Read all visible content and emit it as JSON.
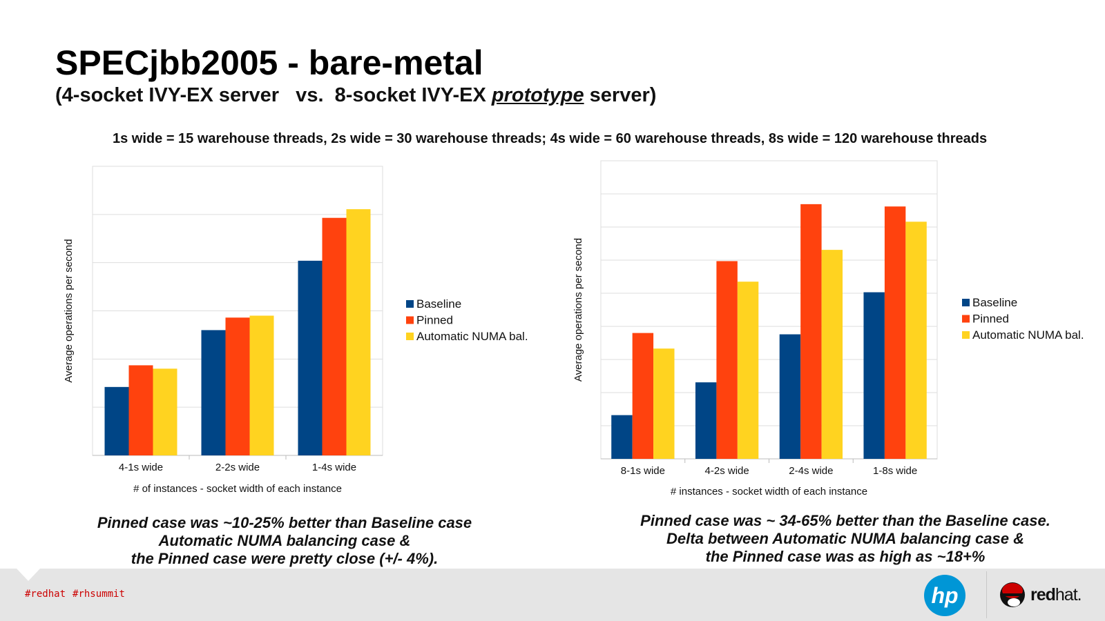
{
  "header": {
    "title": "SPECjbb2005 - bare-metal",
    "subtitle_pre": "(4-socket IVY-EX server   vs.  8-socket IVY-EX ",
    "subtitle_em": "prototype",
    "subtitle_post": " server)",
    "note": "1s wide = 15 warehouse threads, 2s wide = 30 warehouse threads; 4s wide = 60 warehouse threads, 8s wide = 120 warehouse threads"
  },
  "colors": {
    "Baseline": "#004586",
    "Pinned": "#ff420e",
    "Automatic NUMA bal.": "#ffd320"
  },
  "chart_data": [
    {
      "type": "bar",
      "title": "",
      "xlabel": "# of instances - socket width of each instance",
      "ylabel": "Average operations per second",
      "y_tick_labels_shown": false,
      "ylim": [
        0,
        6
      ],
      "grid": true,
      "legend": "right",
      "categories": [
        "4-1s wide",
        "2-2s wide",
        "1-4s wide"
      ],
      "series": [
        {
          "name": "Baseline",
          "values": [
            1.42,
            2.6,
            4.04
          ]
        },
        {
          "name": "Pinned",
          "values": [
            1.87,
            2.86,
            4.93
          ]
        },
        {
          "name": "Automatic NUMA bal.",
          "values": [
            1.8,
            2.9,
            5.11
          ]
        }
      ]
    },
    {
      "type": "bar",
      "title": "",
      "xlabel": "# instances - socket width of each instance",
      "ylabel": "Average operations per second",
      "y_tick_labels_shown": false,
      "ylim": [
        0,
        9
      ],
      "grid": true,
      "legend": "right",
      "categories": [
        "8-1s wide",
        "4-2s wide",
        "2-4s wide",
        "1-8s wide"
      ],
      "series": [
        {
          "name": "Baseline",
          "values": [
            1.32,
            2.31,
            3.76,
            5.03
          ]
        },
        {
          "name": "Pinned",
          "values": [
            3.8,
            5.97,
            7.69,
            7.62
          ]
        },
        {
          "name": "Automatic NUMA bal.",
          "values": [
            3.33,
            5.35,
            6.31,
            7.16
          ]
        }
      ]
    }
  ],
  "conclusions": {
    "left": [
      "Pinned case was ~10-25% better than Baseline case",
      "Automatic NUMA balancing case &",
      "the Pinned case were pretty close (+/- 4%)."
    ],
    "right": [
      "Pinned case was ~ 34-65%  better than the Baseline case.",
      "Delta between Automatic NUMA balancing case &",
      "the Pinned case was as high as ~18+%"
    ]
  },
  "footer": {
    "tags": [
      "#redhat",
      "#rhsummit"
    ],
    "logos": [
      "hp",
      "redhat"
    ],
    "redhat_logo_text": "redhat."
  }
}
